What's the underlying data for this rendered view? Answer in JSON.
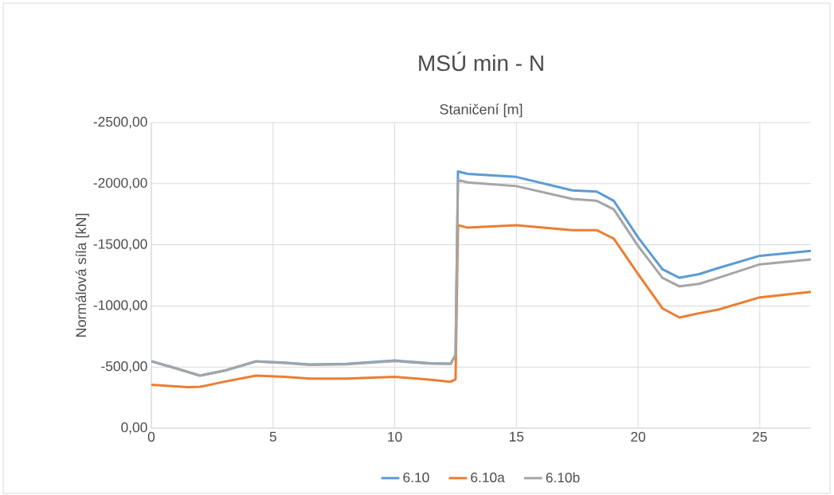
{
  "chart_data": {
    "type": "line",
    "title": "MSÚ min - N",
    "xlabel": "Staničení [m]",
    "ylabel": "Normálová síla [kN]",
    "xlim": [
      0,
      27.1
    ],
    "xticks": [
      0,
      5,
      10,
      15,
      20,
      25
    ],
    "ylim": [
      0,
      -2500
    ],
    "yticks": [
      {
        "value": 0,
        "label": "0,00"
      },
      {
        "value": -500,
        "label": "-500,00"
      },
      {
        "value": -1000,
        "label": "-1000,00"
      },
      {
        "value": -1500,
        "label": "-1500,00"
      },
      {
        "value": -2000,
        "label": "-2000,00"
      },
      {
        "value": -2500,
        "label": "-2500,00"
      }
    ],
    "grid": true,
    "legend": "bottom",
    "marker": "none",
    "line_style": "solid",
    "series": [
      {
        "name": "6.10",
        "color": "#5b9bd5",
        "x": [
          0,
          1,
          2,
          3,
          4.3,
          5.5,
          6.5,
          8,
          10,
          11.5,
          12.3,
          12.5,
          12.6,
          13,
          15,
          17.3,
          18.3,
          19,
          20,
          21,
          21.7,
          22.5,
          23.3,
          25,
          27.1
        ],
        "values": [
          -547,
          -490,
          -430,
          -470,
          -547,
          -535,
          -521,
          -525,
          -553,
          -530,
          -527,
          -600,
          -2100,
          -2080,
          -2055,
          -1945,
          -1935,
          -1860,
          -1560,
          -1300,
          -1230,
          -1260,
          -1310,
          -1410,
          -1450
        ]
      },
      {
        "name": "6.10a",
        "color": "#ed7d31",
        "x": [
          0,
          1.5,
          2,
          3,
          4.3,
          5.5,
          6.5,
          8,
          10,
          11.5,
          12.3,
          12.5,
          12.6,
          13,
          15,
          17.3,
          18.3,
          19,
          20,
          21,
          21.7,
          22.5,
          23.3,
          25,
          27.1
        ],
        "values": [
          -355,
          -335,
          -338,
          -380,
          -430,
          -420,
          -405,
          -405,
          -420,
          -395,
          -380,
          -400,
          -1660,
          -1640,
          -1660,
          -1620,
          -1620,
          -1550,
          -1260,
          -980,
          -905,
          -940,
          -970,
          -1070,
          -1115
        ]
      },
      {
        "name": "6.10b",
        "color": "#a5a5a5",
        "x": [
          0,
          1,
          2,
          3,
          4.3,
          5.5,
          6.5,
          8,
          10,
          11.5,
          12.3,
          12.5,
          12.6,
          13,
          15,
          17.3,
          18.3,
          19,
          20,
          21,
          21.7,
          22.5,
          23.3,
          25,
          27.1
        ],
        "values": [
          -547,
          -490,
          -430,
          -470,
          -545,
          -532,
          -518,
          -522,
          -548,
          -527,
          -525,
          -600,
          -2030,
          -2010,
          -1980,
          -1875,
          -1860,
          -1790,
          -1490,
          -1230,
          -1160,
          -1180,
          -1230,
          -1340,
          -1380
        ]
      }
    ]
  }
}
